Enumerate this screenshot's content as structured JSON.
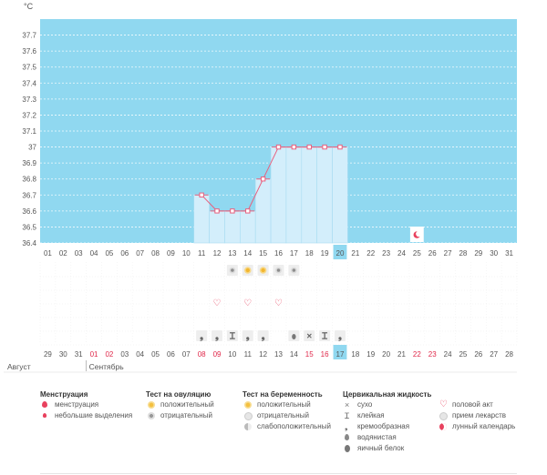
{
  "chart_data": {
    "type": "bar",
    "unit": "°C",
    "ylim": [
      36.4,
      37.8
    ],
    "y_ticks": [
      "37.7",
      "37.6",
      "37.5",
      "37.4",
      "37.3",
      "37.2",
      "37.1",
      "37",
      "36.9",
      "36.8",
      "36.7",
      "36.6",
      "36.5",
      "36.4"
    ],
    "day_labels": [
      "01",
      "02",
      "03",
      "04",
      "05",
      "06",
      "07",
      "08",
      "09",
      "10",
      "11",
      "12",
      "13",
      "14",
      "15",
      "16",
      "17",
      "18",
      "19",
      "20",
      "21",
      "22",
      "23",
      "24",
      "25",
      "26",
      "27",
      "28",
      "29",
      "30",
      "31"
    ],
    "highlight_day": "20",
    "temperature_points": [
      {
        "day": "11",
        "value": 36.7
      },
      {
        "day": "12",
        "value": 36.6
      },
      {
        "day": "13",
        "value": 36.6
      },
      {
        "day": "14",
        "value": 36.6
      },
      {
        "day": "15",
        "value": 36.8
      },
      {
        "day": "16",
        "value": 37.0
      },
      {
        "day": "17",
        "value": 37.0
      },
      {
        "day": "18",
        "value": 37.0
      },
      {
        "day": "19",
        "value": 37.0
      },
      {
        "day": "20",
        "value": 37.0
      }
    ],
    "moon_day": "25",
    "ovulation_tests": [
      {
        "day": "13",
        "result": "negative"
      },
      {
        "day": "14",
        "result": "positive"
      },
      {
        "day": "15",
        "result": "positive"
      },
      {
        "day": "16",
        "result": "negative"
      },
      {
        "day": "17",
        "result": "negative"
      }
    ],
    "intercourse_days": [
      "12",
      "14",
      "16"
    ],
    "fluid_marks": [
      {
        "day": "11",
        "type": "creamy"
      },
      {
        "day": "12",
        "type": "creamy"
      },
      {
        "day": "13",
        "type": "sticky"
      },
      {
        "day": "14",
        "type": "creamy"
      },
      {
        "day": "15",
        "type": "creamy"
      },
      {
        "day": "17",
        "type": "watery"
      },
      {
        "day": "18",
        "type": "dry"
      },
      {
        "day": "19",
        "type": "sticky"
      },
      {
        "day": "20",
        "type": "creamy"
      }
    ],
    "cycle_dates": [
      {
        "label": "29",
        "red": false
      },
      {
        "label": "30",
        "red": false
      },
      {
        "label": "31",
        "red": false
      },
      {
        "label": "01",
        "red": true
      },
      {
        "label": "02",
        "red": true
      },
      {
        "label": "03",
        "red": false
      },
      {
        "label": "04",
        "red": false
      },
      {
        "label": "05",
        "red": false
      },
      {
        "label": "06",
        "red": false
      },
      {
        "label": "07",
        "red": false
      },
      {
        "label": "08",
        "red": true
      },
      {
        "label": "09",
        "red": true
      },
      {
        "label": "10",
        "red": false
      },
      {
        "label": "11",
        "red": false
      },
      {
        "label": "12",
        "red": false
      },
      {
        "label": "13",
        "red": false
      },
      {
        "label": "14",
        "red": false
      },
      {
        "label": "15",
        "red": true
      },
      {
        "label": "16",
        "red": true
      },
      {
        "label": "17",
        "red": false
      },
      {
        "label": "18",
        "red": false
      },
      {
        "label": "19",
        "red": false
      },
      {
        "label": "20",
        "red": false
      },
      {
        "label": "21",
        "red": false
      },
      {
        "label": "22",
        "red": true
      },
      {
        "label": "23",
        "red": true
      },
      {
        "label": "24",
        "red": false
      },
      {
        "label": "25",
        "red": false
      },
      {
        "label": "26",
        "red": false
      },
      {
        "label": "27",
        "red": false
      },
      {
        "label": "28",
        "red": false
      }
    ],
    "highlight_date": "17",
    "month_labels": [
      "Август",
      "Сентябрь"
    ],
    "colors": {
      "area": "#90d8f0",
      "bar": "#d3eefb",
      "bar_edge": "#a8dcf2",
      "line": "#e8607e",
      "highlight": "#90d8f0",
      "red_text": "#e0284a"
    }
  },
  "legend": {
    "menstruation": {
      "title": "Менструация",
      "items": [
        "менструация",
        "небольшие выделения"
      ]
    },
    "ovulation": {
      "title": "Тест на овуляцию",
      "items": [
        "положительный",
        "отрицательный"
      ]
    },
    "pregnancy": {
      "title": "Тест на беременность",
      "items": [
        "положительный",
        "отрицательный",
        "слабоположительный"
      ]
    },
    "cervical": {
      "title": "Цервикальная жидкость",
      "items": [
        "сухо",
        "клейкая",
        "кремообразная",
        "водянистая",
        "яичный белок"
      ]
    },
    "other": {
      "items": [
        "половой акт",
        "прием лекарств",
        "лунный календарь"
      ]
    }
  }
}
